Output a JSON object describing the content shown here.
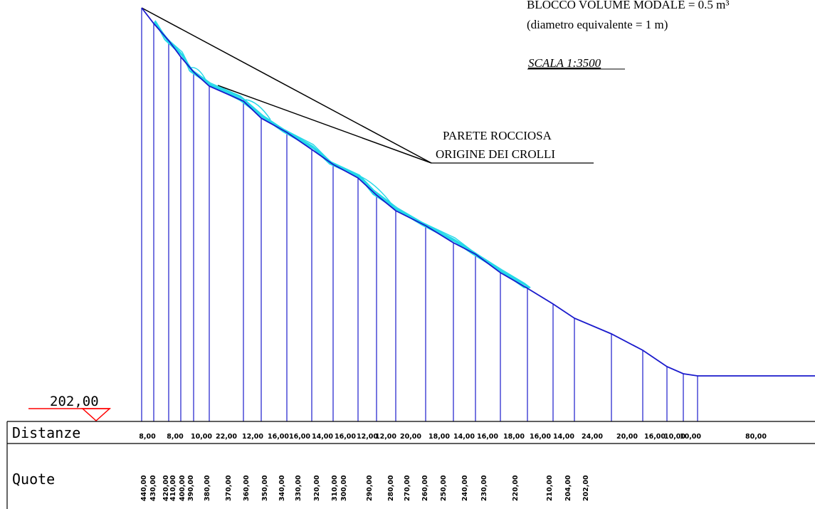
{
  "header": {
    "block_volume_label": "BLOCCO VOLUME MODALE = 0.5 m³",
    "equivalent_diameter_label": "(diametro equivalente = 1 m)",
    "scale_label": "SCALA 1:3500"
  },
  "annotation": {
    "line1": "PARETE ROCCIOSA",
    "line2": "ORIGINE DEI CROLLI"
  },
  "datum": {
    "label": "202,00"
  },
  "table": {
    "distances_label": "Distanze",
    "heights_label": "Quote",
    "distances": [
      "8,00",
      "8,00",
      "10,00",
      "22,00",
      "12,00",
      "16,00",
      "16,00",
      "14,00",
      "16,00",
      "12,00",
      "12,00",
      "20,00",
      "18,00",
      "14,00",
      "16,00",
      "18,00",
      "16,00",
      "14,00",
      "24,00",
      "20,00",
      "16,00",
      "10,00",
      "10,00",
      "80,00"
    ],
    "heights": [
      "440,00",
      "430,00",
      "420,00",
      "410,00",
      "400,00",
      "390,00",
      "380,00",
      "370,00",
      "360,00",
      "350,00",
      "340,00",
      "330,00",
      "320,00",
      "310,00",
      "300,00",
      "290,00",
      "280,00",
      "270,00",
      "260,00",
      "250,00",
      "240,00",
      "230,00",
      "220,00",
      "210,00",
      "204,00",
      "202,00"
    ]
  },
  "colors": {
    "profile": "#1a1acc",
    "trajectory": "#22d8e8",
    "datum": "#ff0000",
    "text": "#000000"
  }
}
